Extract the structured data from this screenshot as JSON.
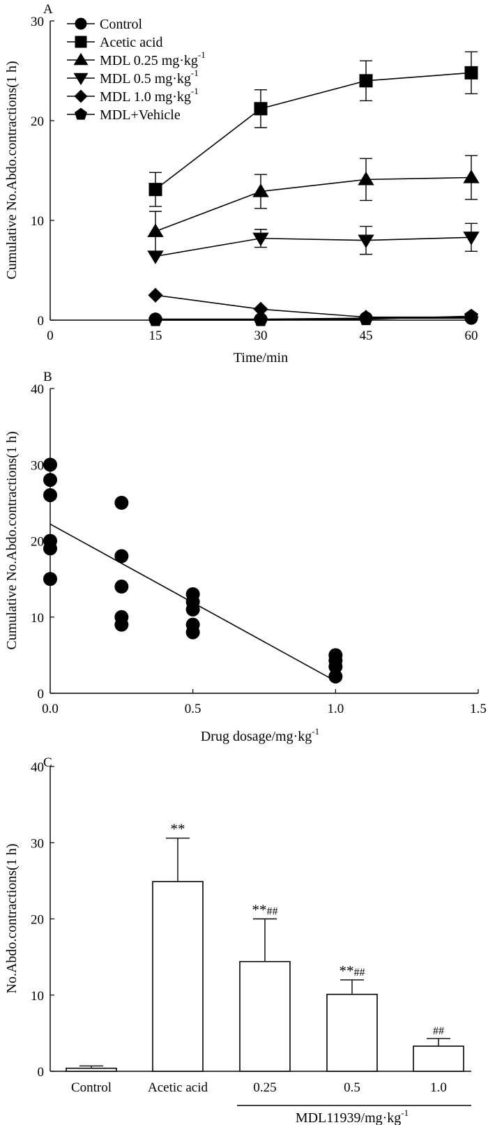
{
  "chart_data": [
    {
      "type": "line",
      "panel": "A",
      "xlabel": "Time/min",
      "ylabel": "Cumulative No.Abdo.contractions(1 h)",
      "xlim": [
        0,
        60
      ],
      "ylim": [
        0,
        30
      ],
      "xticks": [
        "0",
        "15",
        "30",
        "45",
        "60"
      ],
      "yticks": [
        "0",
        "10",
        "20",
        "30"
      ],
      "x": [
        15,
        30,
        45,
        60
      ],
      "series": [
        {
          "name": "Control",
          "marker": "circle",
          "values": [
            0.1,
            0.1,
            0.2,
            0.2
          ],
          "err": [
            0,
            0,
            0,
            0
          ]
        },
        {
          "name": "Acetic acid",
          "marker": "square",
          "values": [
            13.1,
            21.2,
            24.0,
            24.8
          ],
          "err": [
            1.7,
            1.9,
            2.0,
            2.1
          ]
        },
        {
          "name": "MDL 0.25 mg·kg",
          "sup": "-1",
          "marker": "triangle-up",
          "values": [
            8.9,
            12.9,
            14.1,
            14.3
          ],
          "err": [
            2.0,
            1.7,
            2.1,
            2.2
          ]
        },
        {
          "name": "MDL 0.5 mg·kg",
          "sup": "-1",
          "marker": "triangle-down",
          "values": [
            6.4,
            8.2,
            8.0,
            8.3
          ],
          "err": [
            0,
            0.9,
            1.4,
            1.4
          ]
        },
        {
          "name": "MDL 1.0 mg·kg",
          "sup": "-1",
          "marker": "diamond",
          "values": [
            2.5,
            1.1,
            0.3,
            0.3
          ],
          "err": [
            0,
            0,
            0,
            0
          ]
        },
        {
          "name": "MDL+Vehicle",
          "marker": "pentagon",
          "values": [
            0.0,
            0.0,
            0.1,
            0.4
          ],
          "err": [
            0,
            0,
            0,
            0
          ]
        }
      ]
    },
    {
      "type": "scatter",
      "panel": "B",
      "xlabel": "Drug dosage/mg·kg",
      "xlabel_sup": "-1",
      "ylabel": "Cumulative No.Abdo.contractions(1 h)",
      "xlim": [
        0,
        1.5
      ],
      "ylim": [
        0,
        40
      ],
      "xticks": [
        "0.0",
        "0.5",
        "1.0",
        "1.5"
      ],
      "yticks": [
        "0",
        "10",
        "20",
        "30",
        "40"
      ],
      "points": [
        [
          0,
          30
        ],
        [
          0,
          28
        ],
        [
          0,
          26
        ],
        [
          0,
          20
        ],
        [
          0,
          19
        ],
        [
          0,
          15
        ],
        [
          0.25,
          25
        ],
        [
          0.25,
          18
        ],
        [
          0.25,
          14
        ],
        [
          0.25,
          10
        ],
        [
          0.25,
          9
        ],
        [
          0.5,
          13
        ],
        [
          0.5,
          12
        ],
        [
          0.5,
          11
        ],
        [
          0.5,
          9
        ],
        [
          0.5,
          8
        ],
        [
          1.0,
          5
        ],
        [
          1.0,
          4.3
        ],
        [
          1.0,
          3.5
        ],
        [
          1.0,
          2.2
        ]
      ],
      "fit": {
        "x": [
          0,
          1.0
        ],
        "y": [
          22.2,
          1.6
        ]
      }
    },
    {
      "type": "bar",
      "panel": "C",
      "ylabel": "No.Abdo.contractions(1 h)",
      "ylim": [
        0,
        40
      ],
      "yticks": [
        "0",
        "10",
        "20",
        "30",
        "40"
      ],
      "categories": [
        "Control",
        "Acetic acid",
        "0.25",
        "0.5",
        "1.0"
      ],
      "values": [
        0.4,
        24.9,
        14.4,
        10.1,
        3.3
      ],
      "err": [
        0.3,
        5.7,
        5.6,
        1.9,
        1.0
      ],
      "annotations": [
        {
          "stars": "",
          "hashes": ""
        },
        {
          "stars": "**",
          "hashes": ""
        },
        {
          "stars": "**",
          "hashes": "##"
        },
        {
          "stars": "**",
          "hashes": "##"
        },
        {
          "stars": "",
          "hashes": "##"
        }
      ],
      "group_label": "MDL11939/mg·kg",
      "group_label_sup": "-1"
    }
  ]
}
